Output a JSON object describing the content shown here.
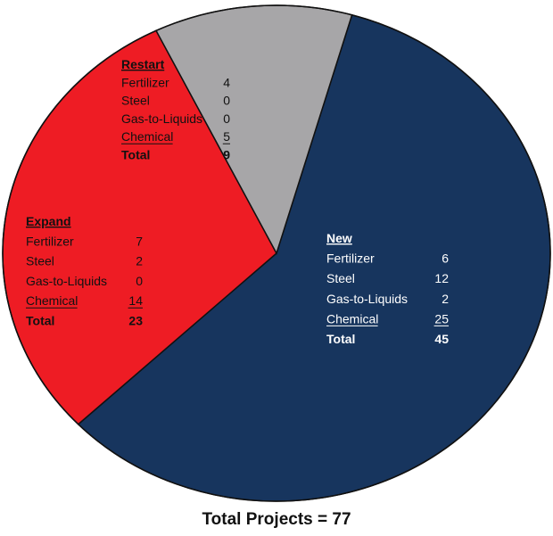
{
  "chart_data": {
    "type": "pie",
    "title": "Total Projects = 77",
    "slices": [
      {
        "name": "New",
        "value": 45,
        "color": "#17355e",
        "text_color": "#ffffff",
        "rows": [
          {
            "label": "Fertilizer",
            "value": "6"
          },
          {
            "label": "Steel",
            "value": "12"
          },
          {
            "label": "Gas-to-Liquids",
            "value": "2"
          },
          {
            "label": "Chemical",
            "value": "25"
          }
        ],
        "total_label": "Total",
        "total_value": "45"
      },
      {
        "name": "Expand",
        "value": 23,
        "color": "#ee1c24",
        "text_color": "#111111",
        "rows": [
          {
            "label": "Fertilizer",
            "value": "7"
          },
          {
            "label": "Steel",
            "value": "2"
          },
          {
            "label": "Gas-to-Liquids",
            "value": "0"
          },
          {
            "label": "Chemical",
            "value": "14"
          }
        ],
        "total_label": "Total",
        "total_value": "23"
      },
      {
        "name": "Restart",
        "value": 9,
        "color": "#a7a6a8",
        "text_color": "#111111",
        "rows": [
          {
            "label": "Fertilizer",
            "value": "4"
          },
          {
            "label": "Steel",
            "value": "0"
          },
          {
            "label": "Gas-to-Liquids",
            "value": "0"
          },
          {
            "label": "Chemical",
            "value": "5"
          }
        ],
        "total_label": "Total",
        "total_value": "9"
      }
    ]
  }
}
